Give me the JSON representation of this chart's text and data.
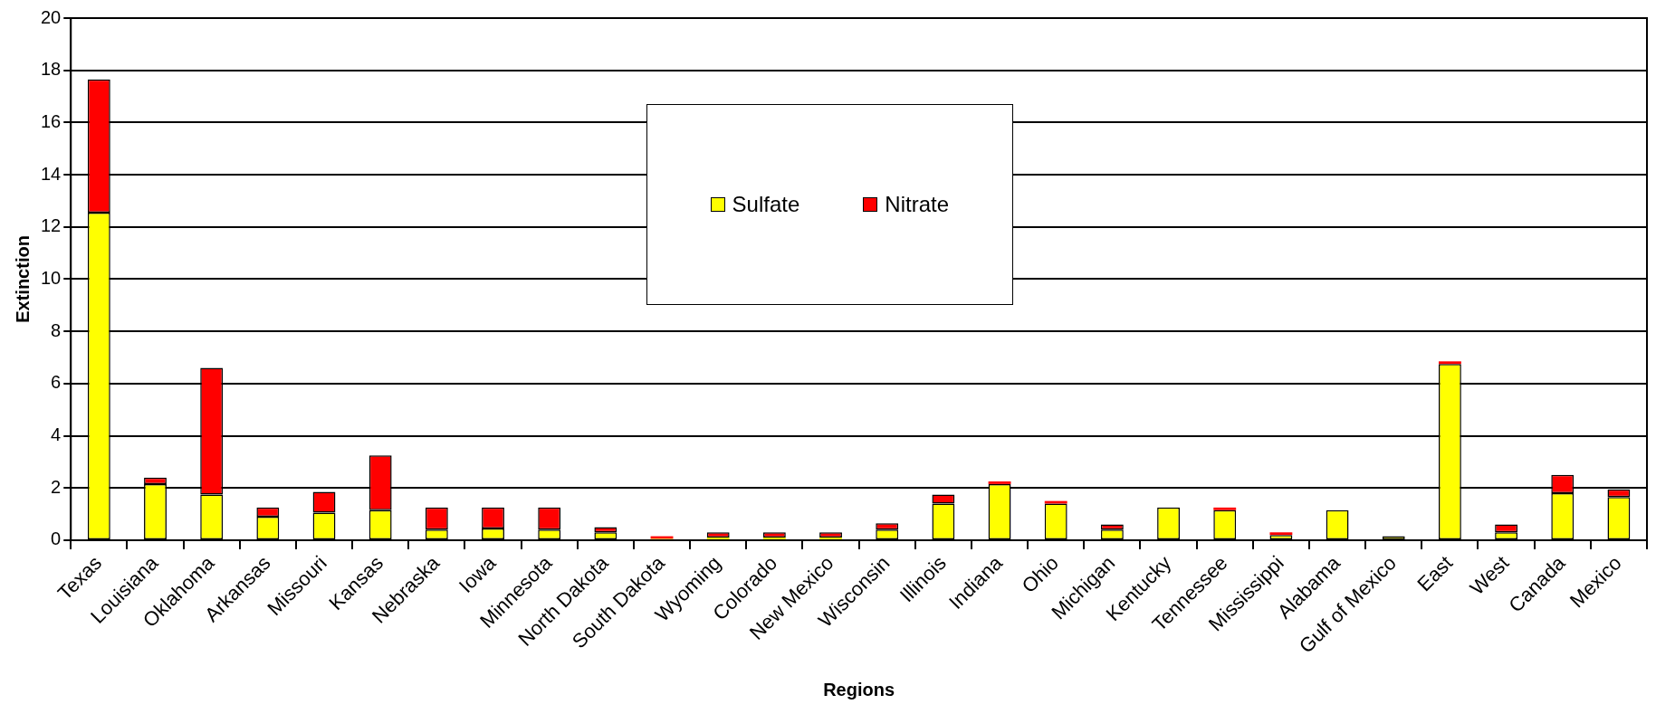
{
  "chart_data": {
    "type": "bar",
    "stacked": true,
    "xlabel": "Regions",
    "ylabel": "Extinction",
    "categories": [
      "Texas",
      "Louisiana",
      "Oklahoma",
      "Arkansas",
      "Missouri",
      "Kansas",
      "Nebraska",
      "Iowa",
      "Minnesota",
      "North Dakota",
      "South Dakota",
      "Wyoming",
      "Colorado",
      "New Mexico",
      "Wisconsin",
      "Illinois",
      "Indiana",
      "Ohio",
      "Michigan",
      "Kentucky",
      "Tennessee",
      "Mississippi",
      "Alabama",
      "Gulf of Mexico",
      "East",
      "West",
      "Canada",
      "Mexico"
    ],
    "series": [
      {
        "name": "Sulfate",
        "color": "#ffff00",
        "values": [
          12.55,
          2.15,
          1.75,
          0.9,
          1.05,
          1.15,
          0.4,
          0.45,
          0.4,
          0.3,
          0.05,
          0.1,
          0.1,
          0.1,
          0.4,
          1.4,
          2.15,
          1.4,
          0.4,
          1.25,
          1.15,
          0.2,
          1.15,
          0.15,
          6.75,
          0.3,
          1.8,
          1.65
        ]
      },
      {
        "name": "Nitrate",
        "color": "#ff0000",
        "values": [
          5.1,
          0.25,
          4.85,
          0.35,
          0.8,
          2.1,
          0.85,
          0.8,
          0.85,
          0.2,
          0.1,
          0.2,
          0.2,
          0.2,
          0.25,
          0.35,
          0.1,
          0.1,
          0.2,
          0,
          0.1,
          0.1,
          0,
          0,
          0.1,
          0.3,
          0.7,
          0.3
        ]
      }
    ],
    "ylim": [
      0,
      20
    ],
    "yticks": [
      0,
      2,
      4,
      6,
      8,
      10,
      12,
      14,
      16,
      18,
      20
    ],
    "grid": "y",
    "legend": "top"
  }
}
